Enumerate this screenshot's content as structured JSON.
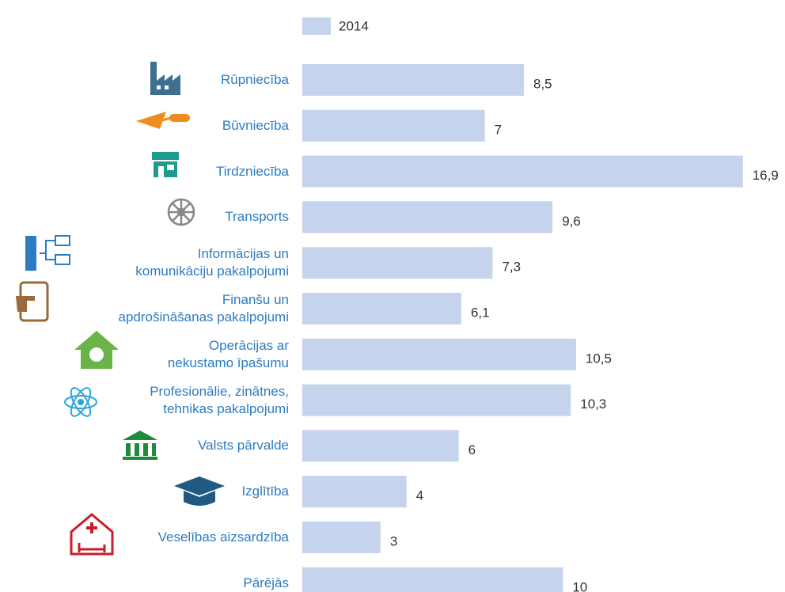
{
  "chart_data": {
    "type": "bar",
    "orientation": "horizontal",
    "categories": [
      "Rūpniecība",
      "Būvniecība",
      "Tirdzniecība",
      "Transports",
      "Informācijas un\nkomunikāciju pakalpojumi",
      "Finanšu un\napdrošināšanas pakalpojumi",
      "Operācijas ar\nnekustamo īpašumu",
      "Profesionālie, zinātnes,\ntehnikas pakalpojumi",
      "Valsts pārvalde",
      "Izglītība",
      "Veselības aizsardzība",
      "Pārējās"
    ],
    "series": [
      {
        "name": "2014",
        "color": "#c5d3ec",
        "values": [
          8.5,
          7,
          16.9,
          9.6,
          7.3,
          6.1,
          10.5,
          10.3,
          6,
          4,
          3,
          10
        ],
        "value_labels": [
          "8,5",
          "7",
          "16,9",
          "9,6",
          "7,3",
          "6,1",
          "10,5",
          "10,3",
          "6",
          "4",
          "3",
          "10"
        ]
      }
    ],
    "xlim": [
      0,
      17
    ]
  }
}
